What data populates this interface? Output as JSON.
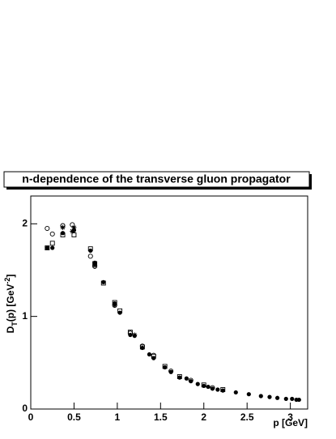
{
  "chart_data": {
    "type": "scatter",
    "title": "n-dependence of the transverse gluon propagator",
    "x_label": "p [GeV]",
    "y_label": {
      "main": "D",
      "sub": "T",
      "mid": "(p) [GeV",
      "sup": "-2",
      "end": "]"
    },
    "xlim": [
      0,
      3.2
    ],
    "ylim": [
      0,
      2.3
    ],
    "xticks": [
      0,
      0.5,
      1,
      1.5,
      2,
      2.5,
      3
    ],
    "yticks": [
      0,
      1,
      2
    ],
    "series": [
      {
        "marker": "filled-circle",
        "color": "#000000",
        "x": [
          0.19,
          0.25,
          0.37,
          0.5,
          0.69,
          0.74,
          0.84,
          0.97,
          1.03,
          1.15,
          1.2,
          1.29,
          1.37,
          1.42,
          1.55,
          1.62,
          1.72,
          1.8,
          1.85,
          1.93,
          2.0,
          2.05,
          2.1,
          2.16,
          2.22,
          2.37,
          2.52,
          2.66,
          2.76,
          2.85,
          2.95,
          3.02,
          3.07,
          3.1
        ],
        "values": [
          1.74,
          1.74,
          1.9,
          1.93,
          1.71,
          1.58,
          1.37,
          1.14,
          1.04,
          0.8,
          0.79,
          0.66,
          0.59,
          0.55,
          0.45,
          0.4,
          0.34,
          0.33,
          0.3,
          0.27,
          0.25,
          0.24,
          0.22,
          0.21,
          0.2,
          0.18,
          0.16,
          0.14,
          0.13,
          0.12,
          0.11,
          0.11,
          0.1,
          0.1
        ]
      },
      {
        "marker": "open-circle",
        "color": "#000000",
        "x": [
          0.19,
          0.25,
          0.37,
          0.48,
          0.69,
          0.74,
          0.97,
          1.15,
          1.29,
          1.42,
          1.62,
          1.85,
          2.1
        ],
        "values": [
          1.95,
          1.89,
          1.98,
          1.99,
          1.65,
          1.54,
          1.12,
          0.82,
          0.68,
          0.58,
          0.41,
          0.31,
          0.23
        ]
      },
      {
        "marker": "open-square",
        "color": "#000000",
        "x": [
          0.19,
          0.25,
          0.37,
          0.5,
          0.69,
          0.74,
          0.84,
          0.97,
          1.03,
          1.15,
          1.29,
          1.42,
          1.55,
          1.72,
          2.0,
          2.22
        ],
        "values": [
          1.74,
          1.79,
          1.88,
          1.88,
          1.73,
          1.57,
          1.36,
          1.15,
          1.06,
          0.83,
          0.67,
          0.57,
          0.46,
          0.35,
          0.26,
          0.21
        ]
      },
      {
        "marker": "star",
        "color": "#000000",
        "x": [
          0.37,
          0.48,
          0.5,
          0.74,
          0.97,
          1.2
        ],
        "values": [
          1.96,
          1.92,
          1.96,
          1.55,
          1.12,
          0.8
        ]
      }
    ]
  }
}
